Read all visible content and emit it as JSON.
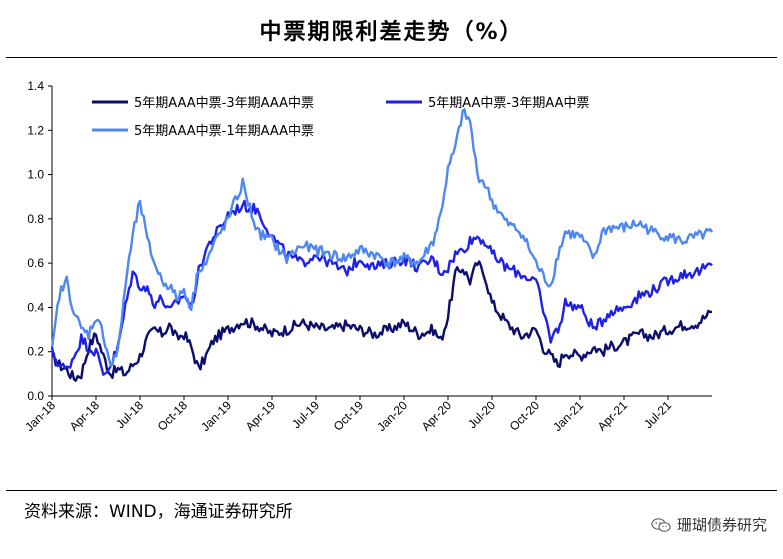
{
  "title": "中票期限利差走势（%）",
  "source": "资料来源：WIND，海通证券研究所",
  "brand": "珊瑚债券研究",
  "brand_icon": "wechat-icon",
  "chart_data": {
    "type": "line",
    "title": "中票期限利差走势（%）",
    "xlabel": "",
    "ylabel": "",
    "ylim": [
      0,
      1.4
    ],
    "yticks": [
      "0.0",
      "0.2",
      "0.4",
      "0.6",
      "0.8",
      "1.0",
      "1.2",
      "1.4"
    ],
    "xticks": [
      "Jan-18",
      "Apr-18",
      "Jul-18",
      "Oct-18",
      "Jan-19",
      "Apr-19",
      "Jul-19",
      "Oct-19",
      "Jan-20",
      "Apr-20",
      "Jul-20",
      "Oct-20",
      "Jan-21",
      "Apr-21",
      "Jul-21"
    ],
    "x_months_range": [
      0,
      45
    ],
    "legend": "top-left",
    "series": [
      {
        "name": "5年期AAA中票-3年期AAA中票",
        "color": "#0b0f6b",
        "x": [
          0,
          0.5,
          1,
          1.5,
          2,
          2.5,
          3,
          3.5,
          4,
          4.5,
          5,
          5.5,
          6,
          6.5,
          7,
          7.5,
          8,
          8.5,
          9,
          9.5,
          10,
          10.5,
          11,
          11.5,
          12,
          13,
          14,
          15,
          16,
          17,
          18,
          19,
          20,
          21,
          22,
          23,
          24,
          25,
          26,
          26.5,
          27,
          27.5,
          28,
          28.5,
          29,
          29.5,
          30,
          31,
          32,
          33,
          33.5,
          34,
          34.5,
          35,
          36,
          37,
          37.5,
          38,
          39,
          40,
          41,
          42,
          43,
          44,
          45
        ],
        "values": [
          0.18,
          0.14,
          0.12,
          0.08,
          0.1,
          0.22,
          0.28,
          0.18,
          0.1,
          0.12,
          0.1,
          0.14,
          0.18,
          0.26,
          0.3,
          0.28,
          0.32,
          0.26,
          0.28,
          0.22,
          0.12,
          0.18,
          0.25,
          0.28,
          0.3,
          0.34,
          0.32,
          0.28,
          0.3,
          0.33,
          0.31,
          0.3,
          0.32,
          0.3,
          0.28,
          0.3,
          0.33,
          0.28,
          0.3,
          0.25,
          0.36,
          0.55,
          0.58,
          0.52,
          0.6,
          0.55,
          0.42,
          0.33,
          0.27,
          0.3,
          0.22,
          0.18,
          0.14,
          0.2,
          0.18,
          0.22,
          0.2,
          0.22,
          0.24,
          0.28,
          0.27,
          0.3,
          0.32,
          0.33,
          0.38
        ]
      },
      {
        "name": "5年期AA中票-3年期AA中票",
        "color": "#1f22e6",
        "x": [
          0,
          0.5,
          1,
          1.5,
          2,
          2.5,
          3,
          3.5,
          4,
          4.5,
          5,
          5.5,
          6,
          6.5,
          7,
          7.5,
          8,
          8.5,
          9,
          9.5,
          10,
          10.5,
          11,
          11.5,
          12,
          13,
          14,
          15,
          16,
          17,
          18,
          19,
          20,
          21,
          22,
          23,
          24,
          25,
          26,
          26.5,
          27,
          27.5,
          28,
          28.5,
          29,
          29.5,
          30,
          31,
          32,
          33,
          33.5,
          34,
          34.5,
          35,
          36,
          37,
          37.5,
          38,
          39,
          40,
          41,
          42,
          43,
          44,
          45
        ],
        "values": [
          0.2,
          0.14,
          0.12,
          0.18,
          0.26,
          0.22,
          0.2,
          0.1,
          0.14,
          0.22,
          0.4,
          0.56,
          0.5,
          0.48,
          0.42,
          0.44,
          0.38,
          0.42,
          0.46,
          0.4,
          0.56,
          0.66,
          0.72,
          0.76,
          0.82,
          0.86,
          0.84,
          0.72,
          0.64,
          0.6,
          0.64,
          0.6,
          0.56,
          0.62,
          0.58,
          0.6,
          0.62,
          0.58,
          0.62,
          0.56,
          0.58,
          0.64,
          0.66,
          0.7,
          0.72,
          0.7,
          0.64,
          0.58,
          0.55,
          0.52,
          0.38,
          0.26,
          0.3,
          0.42,
          0.4,
          0.3,
          0.34,
          0.38,
          0.4,
          0.45,
          0.48,
          0.52,
          0.55,
          0.56,
          0.59
        ]
      },
      {
        "name": "5年期AAA中票-1年期AAA中票",
        "color": "#4f87f0",
        "x": [
          0,
          0.5,
          1,
          1.5,
          2,
          2.5,
          3,
          3.5,
          4,
          4.5,
          5,
          5.5,
          6,
          6.5,
          7,
          7.5,
          8,
          8.5,
          9,
          9.5,
          10,
          10.5,
          11,
          11.5,
          12,
          13,
          14,
          15,
          16,
          17,
          18,
          19,
          20,
          21,
          22,
          23,
          24,
          25,
          26,
          26.5,
          27,
          27.5,
          28,
          28.5,
          29,
          29.5,
          30,
          31,
          32,
          33,
          33.5,
          34,
          34.5,
          35,
          36,
          37,
          37.5,
          38,
          39,
          40,
          41,
          42,
          43,
          44,
          45
        ],
        "values": [
          0.2,
          0.46,
          0.52,
          0.38,
          0.3,
          0.28,
          0.36,
          0.28,
          0.14,
          0.2,
          0.5,
          0.72,
          0.88,
          0.7,
          0.6,
          0.52,
          0.5,
          0.44,
          0.48,
          0.4,
          0.58,
          0.6,
          0.68,
          0.74,
          0.8,
          0.96,
          0.74,
          0.7,
          0.62,
          0.68,
          0.66,
          0.64,
          0.62,
          0.66,
          0.64,
          0.6,
          0.62,
          0.6,
          0.7,
          0.82,
          1.02,
          1.12,
          1.28,
          1.24,
          1.0,
          0.96,
          0.88,
          0.78,
          0.74,
          0.6,
          0.54,
          0.5,
          0.64,
          0.74,
          0.72,
          0.62,
          0.74,
          0.76,
          0.76,
          0.78,
          0.74,
          0.72,
          0.7,
          0.72,
          0.74
        ]
      }
    ]
  }
}
